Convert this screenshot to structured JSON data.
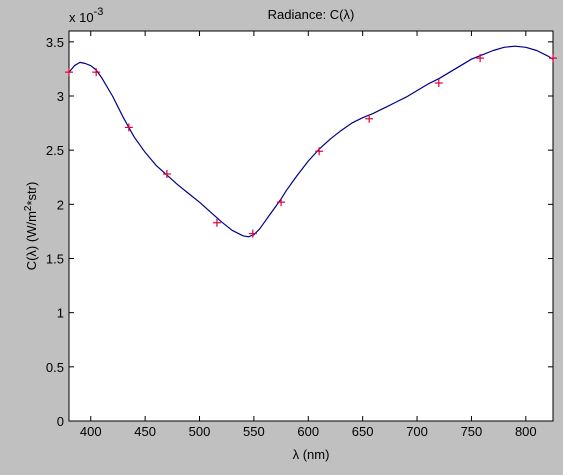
{
  "chart_data": {
    "type": "line",
    "title": "Radiance:  C(λ)",
    "xlabel": "λ (nm)",
    "ylabel_main": "C(λ) (W/m",
    "ylabel_sup": "2",
    "ylabel_tail": "*str)",
    "exponent_label": {
      "prefix": "x 10",
      "power": "-3"
    },
    "xlim": [
      380,
      825
    ],
    "ylim": [
      0,
      3.6
    ],
    "xticks": [
      400,
      450,
      500,
      550,
      600,
      650,
      700,
      750,
      800
    ],
    "yticks": [
      0,
      0.5,
      1,
      1.5,
      2,
      2.5,
      3,
      3.5
    ],
    "ytick_labels": [
      "0",
      "0.5",
      "1",
      "1.5",
      "2",
      "2.5",
      "3",
      "3.5"
    ],
    "grid": false,
    "colors": {
      "curve": "#00008b",
      "markers": "#e0003c",
      "plot_bg": "#ffffff",
      "figure_bg": "#c0c0c0"
    },
    "series": [
      {
        "kind": "smooth-line",
        "x": [
          380,
          385,
          390,
          395,
          400,
          405,
          410,
          420,
          430,
          440,
          450,
          460,
          470,
          480,
          490,
          500,
          510,
          520,
          530,
          540,
          545,
          550,
          555,
          560,
          565,
          570,
          575,
          580,
          590,
          600,
          610,
          620,
          630,
          640,
          650,
          660,
          670,
          680,
          690,
          700,
          710,
          720,
          730,
          740,
          750,
          760,
          770,
          780,
          790,
          800,
          810,
          820,
          825
        ],
        "y": [
          3.22,
          3.28,
          3.31,
          3.3,
          3.28,
          3.24,
          3.17,
          3.0,
          2.8,
          2.62,
          2.48,
          2.36,
          2.27,
          2.18,
          2.1,
          2.02,
          1.93,
          1.84,
          1.76,
          1.71,
          1.7,
          1.72,
          1.77,
          1.84,
          1.91,
          1.98,
          2.05,
          2.13,
          2.27,
          2.4,
          2.51,
          2.6,
          2.68,
          2.75,
          2.8,
          2.84,
          2.89,
          2.94,
          2.99,
          3.05,
          3.11,
          3.16,
          3.22,
          3.28,
          3.34,
          3.38,
          3.42,
          3.45,
          3.46,
          3.45,
          3.42,
          3.37,
          3.34
        ]
      },
      {
        "kind": "markers",
        "x": [
          380,
          405,
          435,
          470,
          516,
          549,
          575,
          610,
          656,
          720,
          758,
          825
        ],
        "y": [
          3.22,
          3.22,
          2.71,
          2.28,
          1.83,
          1.73,
          2.02,
          2.49,
          2.79,
          3.12,
          3.35,
          3.35
        ]
      }
    ]
  }
}
